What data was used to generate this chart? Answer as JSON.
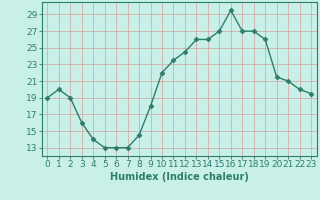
{
  "x": [
    0,
    1,
    2,
    3,
    4,
    5,
    6,
    7,
    8,
    9,
    10,
    11,
    12,
    13,
    14,
    15,
    16,
    17,
    18,
    19,
    20,
    21,
    22,
    23
  ],
  "y": [
    19,
    20,
    19,
    16,
    14,
    13,
    13,
    13,
    14.5,
    18,
    22,
    23.5,
    24.5,
    26,
    26,
    27,
    29.5,
    27,
    27,
    26,
    21.5,
    21,
    20,
    19.5
  ],
  "line_color": "#2e7d6b",
  "marker_color": "#2e7d6b",
  "marker": "D",
  "marker_size": 2.5,
  "background_color": "#c8f0e8",
  "grid_color": "#d4a0a0",
  "yticks": [
    13,
    15,
    17,
    19,
    21,
    23,
    25,
    27,
    29
  ],
  "ylim": [
    12.0,
    30.5
  ],
  "xlim": [
    -0.5,
    23.5
  ],
  "xlabel": "Humidex (Indice chaleur)",
  "xlabel_fontsize": 7,
  "tick_fontsize": 6.5,
  "tick_color": "#2e7d6b",
  "spine_color": "#2e7d6b",
  "linewidth": 1.0
}
